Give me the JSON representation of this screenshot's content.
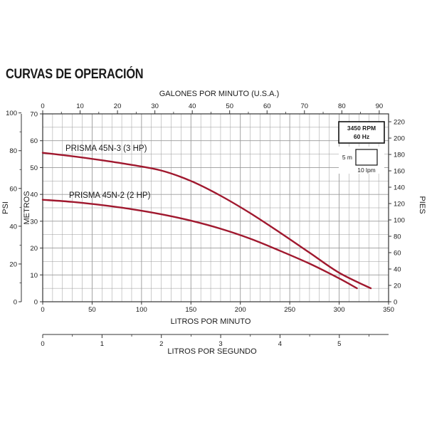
{
  "page": {
    "title": "CURVAS DE OPERACIÓN"
  },
  "chart_data": {
    "type": "line",
    "title": "",
    "grid": true,
    "colors": {
      "curves": "#a0182e",
      "grid": "#9a9a9a",
      "axis": "#333333"
    },
    "axes": {
      "gpm": {
        "label": "GALONES POR MINUTO (U.S.A.)",
        "position": "top",
        "range": [
          0,
          92.5
        ],
        "ticks": [
          0,
          10,
          20,
          30,
          40,
          50,
          60,
          70,
          80,
          90
        ]
      },
      "lpm": {
        "label": "LITROS POR MINUTO",
        "position": "bottom",
        "range": [
          0,
          350
        ],
        "ticks": [
          0,
          50,
          100,
          150,
          200,
          250,
          300,
          350
        ]
      },
      "lps": {
        "label": "LITROS POR SEGUNDO",
        "position": "bottom-secondary",
        "range": [
          0,
          5.83
        ],
        "ticks": [
          0,
          1,
          2,
          3,
          4,
          5
        ]
      },
      "metros": {
        "label": "METROS",
        "position": "left-inner",
        "range": [
          0,
          70
        ],
        "ticks": [
          0,
          10,
          20,
          30,
          40,
          50,
          60,
          70
        ]
      },
      "psi": {
        "label": "PSI",
        "position": "left-outer",
        "range": [
          0,
          99.5
        ],
        "ticks": [
          0,
          20,
          40,
          60,
          80,
          100
        ]
      },
      "pies": {
        "label": "PIES",
        "position": "right",
        "range": [
          0,
          229.6
        ],
        "ticks": [
          0,
          20,
          40,
          60,
          80,
          100,
          120,
          140,
          160,
          180,
          200,
          220
        ]
      }
    },
    "series": [
      {
        "name": "PRISMA 45N-3 (3 HP)",
        "x": [
          0,
          30,
          60,
          90,
          120,
          150,
          180,
          210,
          240,
          270,
          300,
          332
        ],
        "y": [
          55.5,
          54.2,
          52.7,
          51.0,
          48.9,
          45.0,
          39.5,
          33.0,
          25.8,
          18.3,
          10.8,
          5.0
        ]
      },
      {
        "name": "PRISMA 45N-2 (2 HP)",
        "x": [
          0,
          30,
          60,
          90,
          120,
          150,
          180,
          210,
          240,
          270,
          300,
          318
        ],
        "y": [
          38.0,
          37.2,
          36.0,
          34.5,
          32.6,
          30.2,
          27.2,
          23.5,
          19.0,
          14.2,
          8.7,
          5.0
        ]
      }
    ],
    "annotations": {
      "rpm": "3450 RPM",
      "hz": "60 Hz",
      "scale_vertical": "5 m",
      "scale_horizontal": "10 lpm"
    }
  }
}
